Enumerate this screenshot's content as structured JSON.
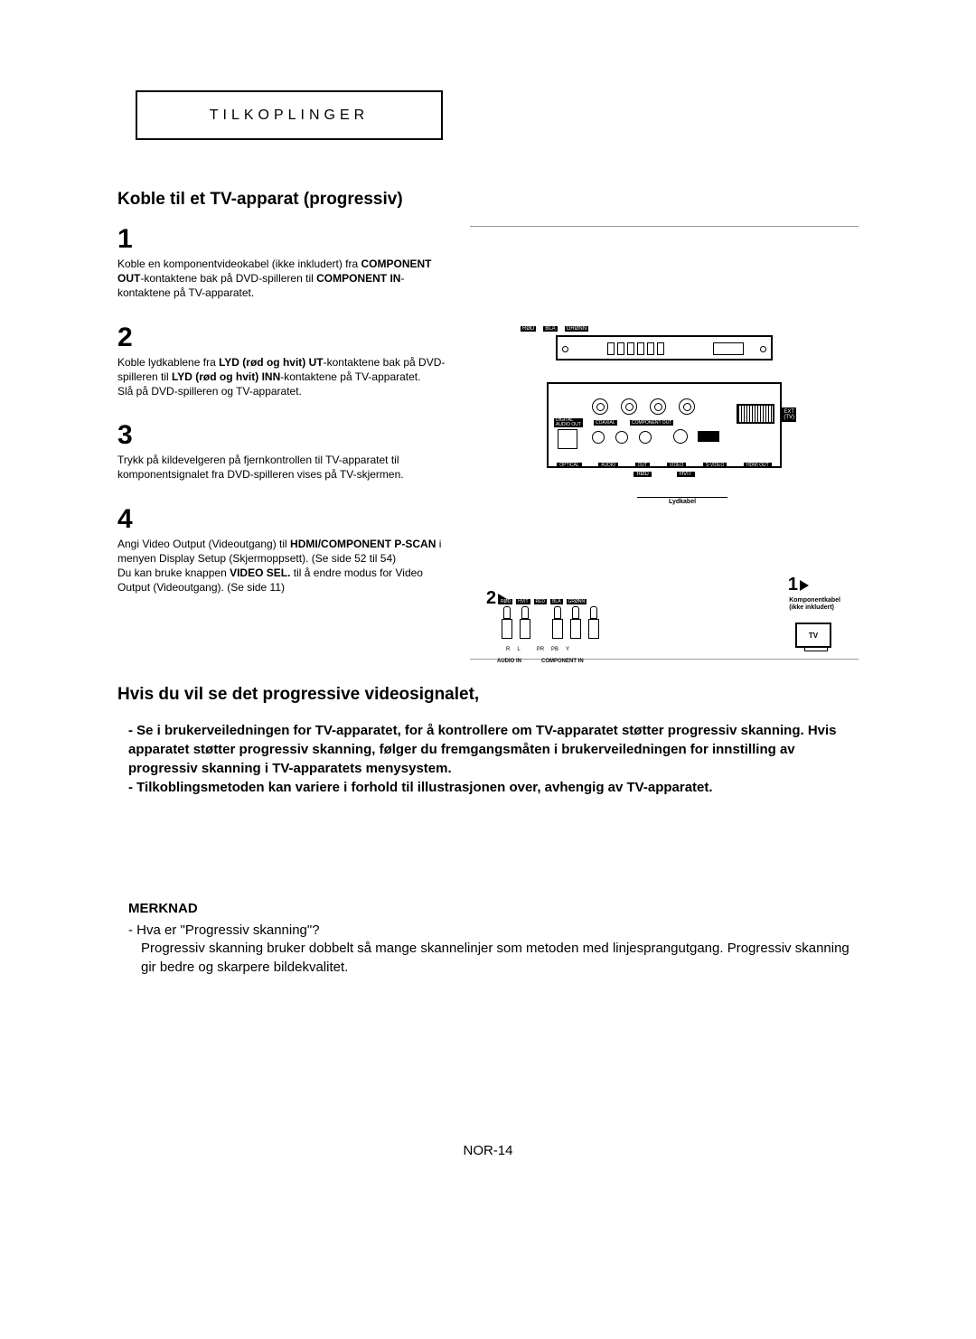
{
  "header": "TILKOPLINGER",
  "section_title": "Koble til et TV-apparat (progressiv)",
  "steps": [
    {
      "num": "1",
      "text_parts": [
        {
          "t": "Koble en komponentvideokabel (ikke inkludert) fra ",
          "b": false
        },
        {
          "t": "COMPONENT OUT",
          "b": true
        },
        {
          "t": "-kontaktene bak på DVD-spilleren til ",
          "b": false
        },
        {
          "t": "COMPONENT IN",
          "b": true
        },
        {
          "t": "-kontaktene på TV-apparatet.",
          "b": false
        }
      ]
    },
    {
      "num": "2",
      "text_parts": [
        {
          "t": "Koble lydkablene fra ",
          "b": false
        },
        {
          "t": "LYD (rød og hvit) UT",
          "b": true
        },
        {
          "t": "-kontaktene bak på DVD-spilleren til ",
          "b": false
        },
        {
          "t": "LYD (rød og hvit) INN",
          "b": true
        },
        {
          "t": "-kontaktene på TV-apparatet.\nSlå på DVD-spilleren og TV-apparatet.",
          "b": false
        }
      ]
    },
    {
      "num": "3",
      "text_parts": [
        {
          "t": "Trykk på kildevelgeren på fjernkontrollen til TV-apparatet til komponentsignalet fra DVD-spilleren vises på TV-skjermen.",
          "b": false
        }
      ]
    },
    {
      "num": "4",
      "text_parts": [
        {
          "t": "Angi Video Output (Videoutgang) til ",
          "b": false
        },
        {
          "t": "HDMI/COMPONENT P-SCAN",
          "b": true
        },
        {
          "t": " i menyen Display Setup (Skjermoppsett). (Se side 52 til 54)\nDu kan bruke knappen ",
          "b": false
        },
        {
          "t": "VIDEO SEL.",
          "b": true
        },
        {
          "t": " til å endre modus for Video Output (Videoutgang). (Se side 11)",
          "b": false
        }
      ]
    }
  ],
  "sub_title": "Hvis du vil se det progressive videosignalet,",
  "bullets": [
    "- Se i brukerveiledningen for TV-apparatet, for å kontrollere om TV-apparatet støtter progressiv skanning. Hvis apparatet støtter progressiv skanning, følger du fremgangsmåten i brukerveiledningen for innstilling av progressiv skanning i TV-apparatets menysystem.",
    "- Tilkoblingsmetoden kan variere i forhold til illustrasjonen over, avhengig av TV-apparatet."
  ],
  "merknad_label": "MERKNAD",
  "merknad_q": "- Hva er \"Progressiv skanning\"?",
  "merknad_a": "Progressiv skanning bruker dobbelt så mange skannelinjer som metoden med linjesprangutgang. Progressiv skanning gir bedre og skarpere bildekvalitet.",
  "page_num": "NOR-14",
  "diagram": {
    "top_labels": [
      "RØD",
      "BLÅ",
      "GRØNN"
    ],
    "bot_row_labels": [
      "OPTICAL",
      "AUDIO",
      "OUT",
      "VIDEO",
      "S-VIDEO",
      "HDMI OUT"
    ],
    "coax": "COAXIAL",
    "comp_out": "COMPONENT OUT",
    "dig": "DIGITAL\nAUDIO OUT",
    "ext": "EXT\n(TV)",
    "cable_lr": [
      "RØD",
      "HVIT"
    ],
    "lydkabel": "Lydkabel",
    "komponent": "Komponentkabel\n(ikke inkludert)",
    "arrow1": "1",
    "arrow2": "2",
    "plug_top": [
      "RØD",
      "HVIT",
      "RED",
      "BLÅ",
      "GRØNN"
    ],
    "plug_bot": [
      "R",
      "L",
      "PR",
      "PB",
      "Y"
    ],
    "plug_section": [
      "AUDIO IN",
      "COMPONENT IN"
    ],
    "tv": "TV"
  }
}
